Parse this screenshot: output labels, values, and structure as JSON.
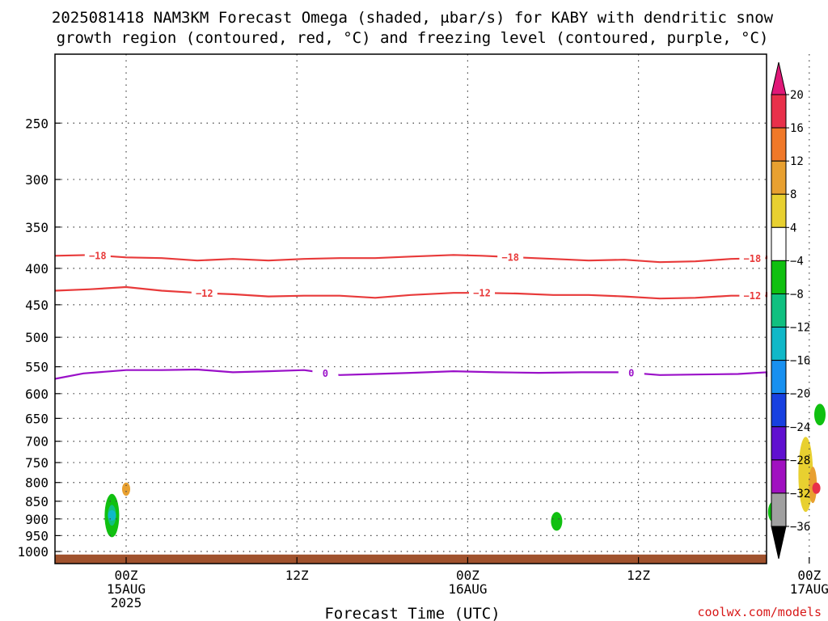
{
  "title_line1": "2025081418 NAM3KM Forecast Omega (shaded, μbar/s) for KABY with dendritic snow",
  "title_line2": "growth region (contoured, red, °C) and freezing level (contoured, purple, °C)",
  "xlabel": "Forecast Time (UTC)",
  "credit": "coolwx.com/models",
  "colors": {
    "temp_contour": "#e83a3a",
    "freezing_contour": "#9a10c8",
    "ground": "#a0522d"
  },
  "chart_data": {
    "type": "heatmap",
    "x_hours_range": [
      -10,
      90
    ],
    "y_range": [
      1040,
      200
    ],
    "y_scale": "log-pressure",
    "grid": true,
    "y_ticks": [
      250,
      300,
      350,
      400,
      450,
      500,
      550,
      600,
      650,
      700,
      750,
      800,
      850,
      900,
      950,
      1000
    ],
    "x_ticks": [
      {
        "hour": 0,
        "labels": [
          "00Z",
          "15AUG",
          "2025"
        ]
      },
      {
        "hour": 24,
        "labels": [
          "12Z"
        ]
      },
      {
        "hour": 48,
        "labels": [
          "00Z",
          "16AUG"
        ]
      },
      {
        "hour": 72,
        "labels": [
          "12Z"
        ]
      },
      {
        "hour": 96,
        "labels": [
          "00Z",
          "17AUG"
        ]
      }
    ],
    "colorbar": {
      "labels": [
        "20",
        "16",
        "12",
        "8",
        "4",
        "−4",
        "−8",
        "−12",
        "−16",
        "−20",
        "−24",
        "−28",
        "−32",
        "−36"
      ],
      "colors": [
        "#e8304a",
        "#f07828",
        "#e8a030",
        "#e8d030",
        "#ffffff",
        "#10c010",
        "#10c080",
        "#10b8c8",
        "#1890f0",
        "#1840e0",
        "#6010d0",
        "#a010c0",
        "#a0a0a0"
      ]
    },
    "contours": [
      {
        "label": "−18",
        "color": "#e83a3a",
        "points": [
          [
            -12,
            384
          ],
          [
            -5,
            383
          ],
          [
            0,
            386
          ],
          [
            5,
            387
          ],
          [
            10,
            390
          ],
          [
            15,
            388
          ],
          [
            20,
            390
          ],
          [
            25,
            388
          ],
          [
            30,
            387
          ],
          [
            35,
            387
          ],
          [
            40,
            385
          ],
          [
            46,
            383
          ],
          [
            50,
            384
          ],
          [
            55,
            386
          ],
          [
            60,
            388
          ],
          [
            65,
            390
          ],
          [
            70,
            389
          ],
          [
            75,
            392
          ],
          [
            80,
            391
          ],
          [
            85,
            388
          ],
          [
            90,
            387
          ],
          [
            96,
            386
          ],
          [
            101,
            384
          ],
          [
            106,
            386
          ],
          [
            108,
            386
          ],
          [
            112,
            385
          ],
          [
            116,
            385
          ]
        ],
        "label_hours": [
          -4,
          54,
          88
        ]
      },
      {
        "label": "−12",
        "color": "#e83a3a",
        "points": [
          [
            -12,
            430
          ],
          [
            -5,
            428
          ],
          [
            0,
            425
          ],
          [
            5,
            430
          ],
          [
            10,
            433
          ],
          [
            15,
            435
          ],
          [
            20,
            438
          ],
          [
            25,
            437
          ],
          [
            30,
            437
          ],
          [
            35,
            440
          ],
          [
            40,
            436
          ],
          [
            46,
            433
          ],
          [
            50,
            433
          ],
          [
            55,
            434
          ],
          [
            60,
            436
          ],
          [
            65,
            436
          ],
          [
            70,
            438
          ],
          [
            75,
            441
          ],
          [
            80,
            440
          ],
          [
            85,
            437
          ],
          [
            90,
            437
          ],
          [
            96,
            439
          ],
          [
            100,
            437
          ],
          [
            106,
            435
          ],
          [
            110,
            435
          ],
          [
            116,
            432
          ]
        ],
        "label_hours": [
          11,
          50,
          88
        ]
      },
      {
        "label": "0",
        "color": "#9a10c8",
        "points": [
          [
            -12,
            572
          ],
          [
            -6,
            562
          ],
          [
            0,
            556
          ],
          [
            5,
            556
          ],
          [
            10,
            555
          ],
          [
            15,
            560
          ],
          [
            20,
            558
          ],
          [
            25,
            556
          ],
          [
            30,
            565
          ],
          [
            35,
            563
          ],
          [
            40,
            561
          ],
          [
            46,
            558
          ],
          [
            52,
            560
          ],
          [
            58,
            561
          ],
          [
            64,
            560
          ],
          [
            70,
            560
          ],
          [
            75,
            565
          ],
          [
            80,
            564
          ],
          [
            86,
            563
          ],
          [
            92,
            560
          ],
          [
            98,
            563
          ],
          [
            100,
            561
          ],
          [
            104,
            566
          ],
          [
            108,
            562
          ],
          [
            112,
            566
          ],
          [
            116,
            568
          ]
        ],
        "label_hours": [
          28,
          71
        ]
      }
    ],
    "omega_blobs": [
      {
        "level": 4,
        "hour": 6.5,
        "p_range": [
          220,
          268
        ]
      },
      {
        "level": 4,
        "hour": -6,
        "p_range": [
          600,
          695
        ]
      },
      {
        "level": 4,
        "hour": 6,
        "p_range": [
          670,
          800
        ]
      },
      {
        "level": 4,
        "hour": 6,
        "p_range": [
          860,
          960
        ]
      },
      {
        "level": 4,
        "hour": 0,
        "p_range": [
          760,
          870
        ]
      },
      {
        "level": 12,
        "hour": 0,
        "p_range": [
          800,
          835
        ]
      },
      {
        "level": -4,
        "hour": -2,
        "p_range": [
          830,
          955
        ]
      },
      {
        "level": -8,
        "hour": -2,
        "p_range": [
          860,
          920
        ]
      },
      {
        "level": -12,
        "hour": -2,
        "p_range": [
          875,
          905
        ]
      },
      {
        "level": 4,
        "hour": 30,
        "p_range": [
          905,
          925
        ]
      },
      {
        "level": 4,
        "hour": 53,
        "p_range": [
          870,
          965
        ]
      },
      {
        "level": 4,
        "hour": 57,
        "p_range": [
          910,
          945
        ]
      },
      {
        "level": -4,
        "hour": 60.5,
        "p_range": [
          880,
          935
        ]
      },
      {
        "level": 4,
        "hour": 62.5,
        "p_range": [
          830,
          850
        ]
      },
      {
        "level": 4,
        "hour": 73,
        "p_range": [
          810,
          905
        ]
      },
      {
        "level": 4,
        "hour": 85,
        "p_range": [
          805,
          960
        ]
      },
      {
        "level": 4,
        "hour": 91,
        "p_range": [
          205,
          320
        ]
      },
      {
        "level": -4,
        "hour": 91,
        "p_range": [
          850,
          910
        ]
      },
      {
        "level": 4,
        "hour": 95.5,
        "p_range": [
          285,
          965
        ]
      },
      {
        "level": 8,
        "hour": 95.5,
        "p_range": [
          690,
          880
        ]
      },
      {
        "level": 12,
        "hour": 96.5,
        "p_range": [
          760,
          855
        ]
      },
      {
        "level": 20,
        "hour": 97,
        "p_range": [
          800,
          830
        ]
      },
      {
        "level": -4,
        "hour": 97.5,
        "p_range": [
          620,
          665
        ]
      }
    ]
  }
}
